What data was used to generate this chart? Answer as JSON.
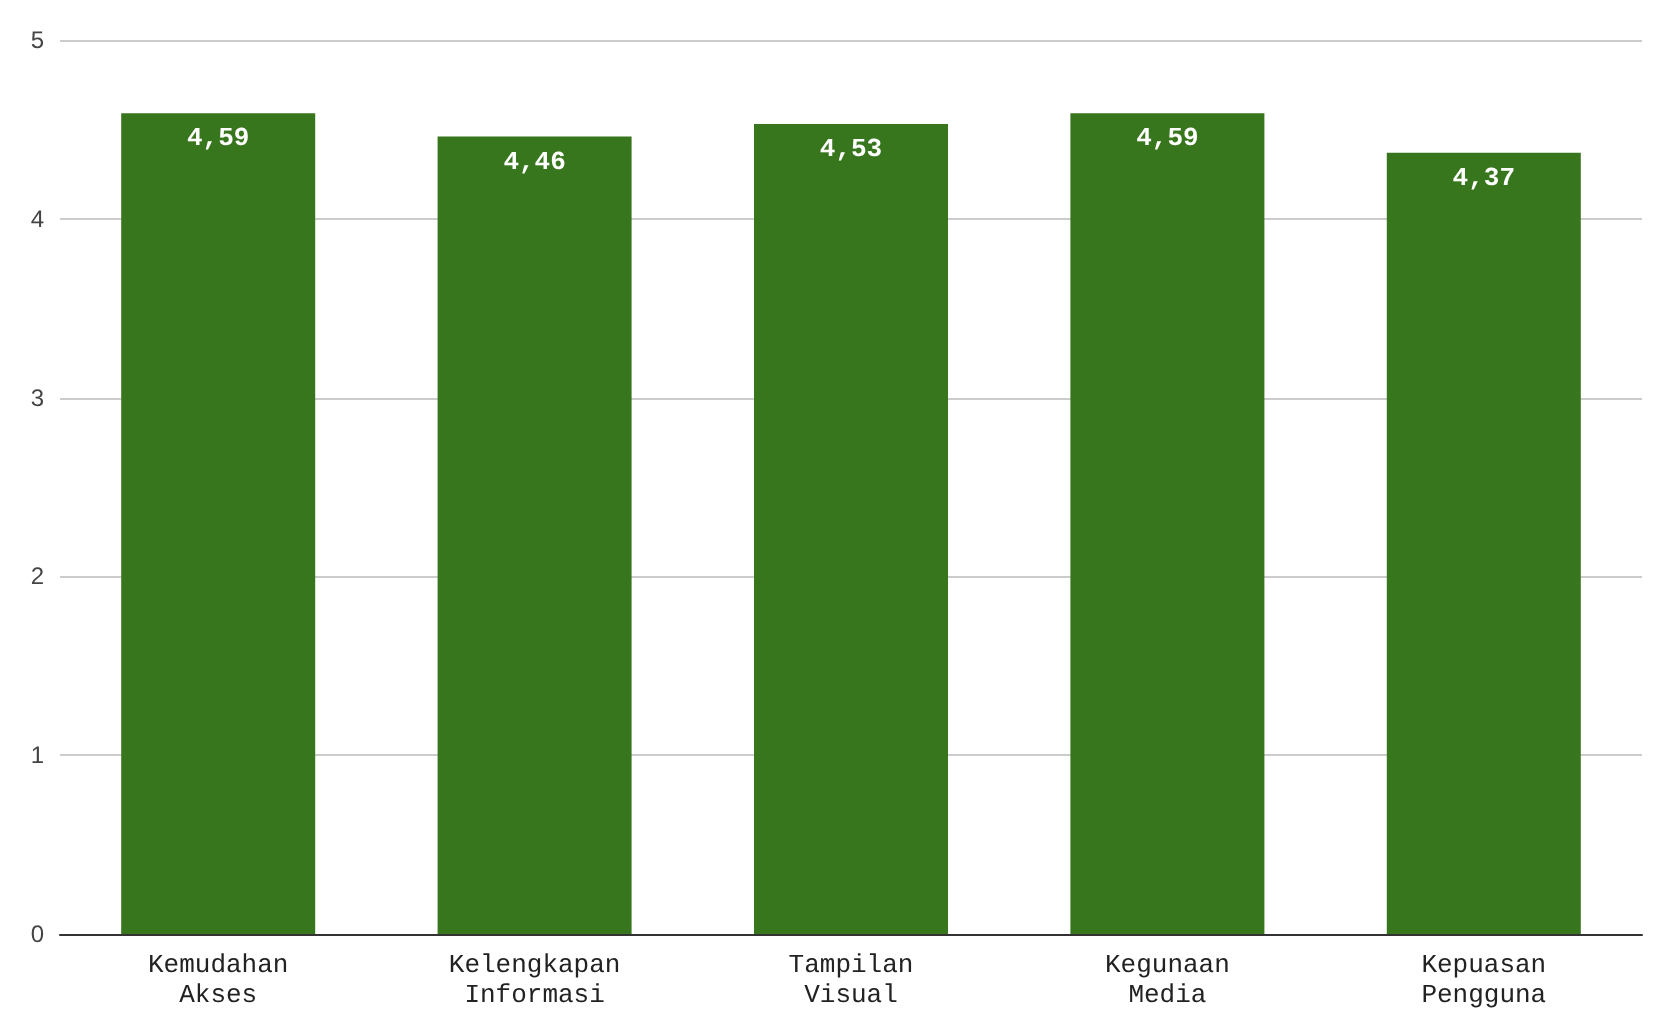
{
  "chart_data": {
    "type": "bar",
    "categories": [
      "Kemudahan Akses",
      "Kelengkapan Informasi",
      "Tampilan Visual",
      "Kegunaan Media",
      "Kepuasan Pengguna"
    ],
    "values": [
      4.59,
      4.46,
      4.53,
      4.59,
      4.37
    ],
    "value_labels": [
      "4,59",
      "4,46",
      "4,53",
      "4,59",
      "4,37"
    ],
    "color": "#38761d",
    "ylim": [
      0,
      5
    ],
    "yticks": [
      0,
      1,
      2,
      3,
      4,
      5
    ],
    "grid": "y"
  }
}
